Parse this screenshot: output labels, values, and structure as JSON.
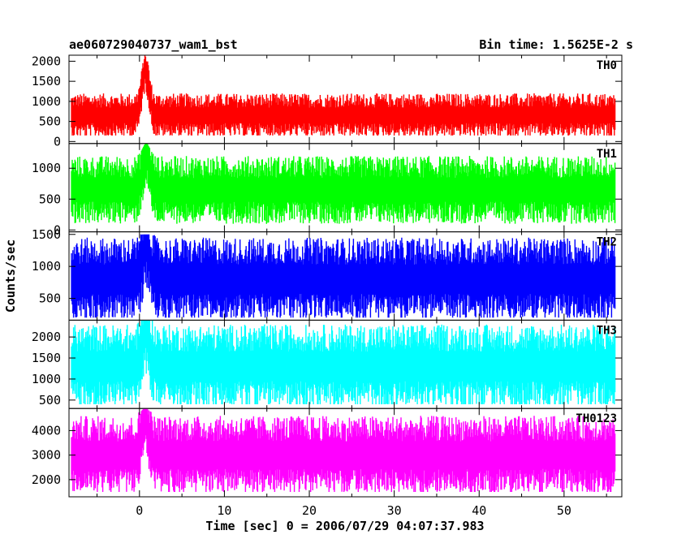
{
  "chart_data": {
    "type": "line",
    "title": "ae060729040737_wam1_bst",
    "subtitle": "Bin time: 1.5625E-2 s",
    "xlabel": "Time [sec] 0 = 2006/07/29 04:07:37.983",
    "ylabel": "Counts/sec",
    "xlim": [
      -8.3,
      56.8
    ],
    "x_ticks": [
      0,
      10,
      20,
      30,
      40,
      50
    ],
    "data_range_x": [
      -8.0,
      56.0
    ],
    "grid": false,
    "panels": [
      {
        "name": "TH0",
        "color": "#ff0000",
        "ylim": [
          -50,
          2150
        ],
        "y_ticks": [
          0,
          500,
          1000,
          1500,
          2000
        ],
        "baseline_mean": 650,
        "noise_low": 150,
        "noise_high": 1250,
        "burst_peak": 2150,
        "burst_time": 0.7
      },
      {
        "name": "TH1",
        "color": "#00ff00",
        "ylim": [
          -30,
          1400
        ],
        "y_ticks": [
          0,
          500,
          1000
        ],
        "baseline_mean": 650,
        "noise_low": 100,
        "noise_high": 1200,
        "burst_peak": 1400,
        "burst_time": 0.8
      },
      {
        "name": "TH2",
        "color": "#0000ff",
        "ylim": [
          160,
          1540
        ],
        "y_ticks": [
          500,
          1000,
          1500
        ],
        "baseline_mean": 800,
        "noise_low": 200,
        "noise_high": 1500,
        "burst_peak": 1500,
        "burst_time": 0.8
      },
      {
        "name": "TH3",
        "color": "#00ffff",
        "ylim": [
          300,
          2400
        ],
        "y_ticks": [
          500,
          1000,
          1500,
          2000
        ],
        "baseline_mean": 1300,
        "noise_low": 400,
        "noise_high": 2400,
        "burst_peak": 2400,
        "burst_time": 0.8
      },
      {
        "name": "TH0123",
        "color": "#ff00ff",
        "ylim": [
          1300,
          4900
        ],
        "y_ticks": [
          2000,
          3000,
          4000
        ],
        "baseline_mean": 3000,
        "noise_low": 1500,
        "noise_high": 4700,
        "burst_peak": 4900,
        "burst_time": 0.7
      }
    ]
  }
}
